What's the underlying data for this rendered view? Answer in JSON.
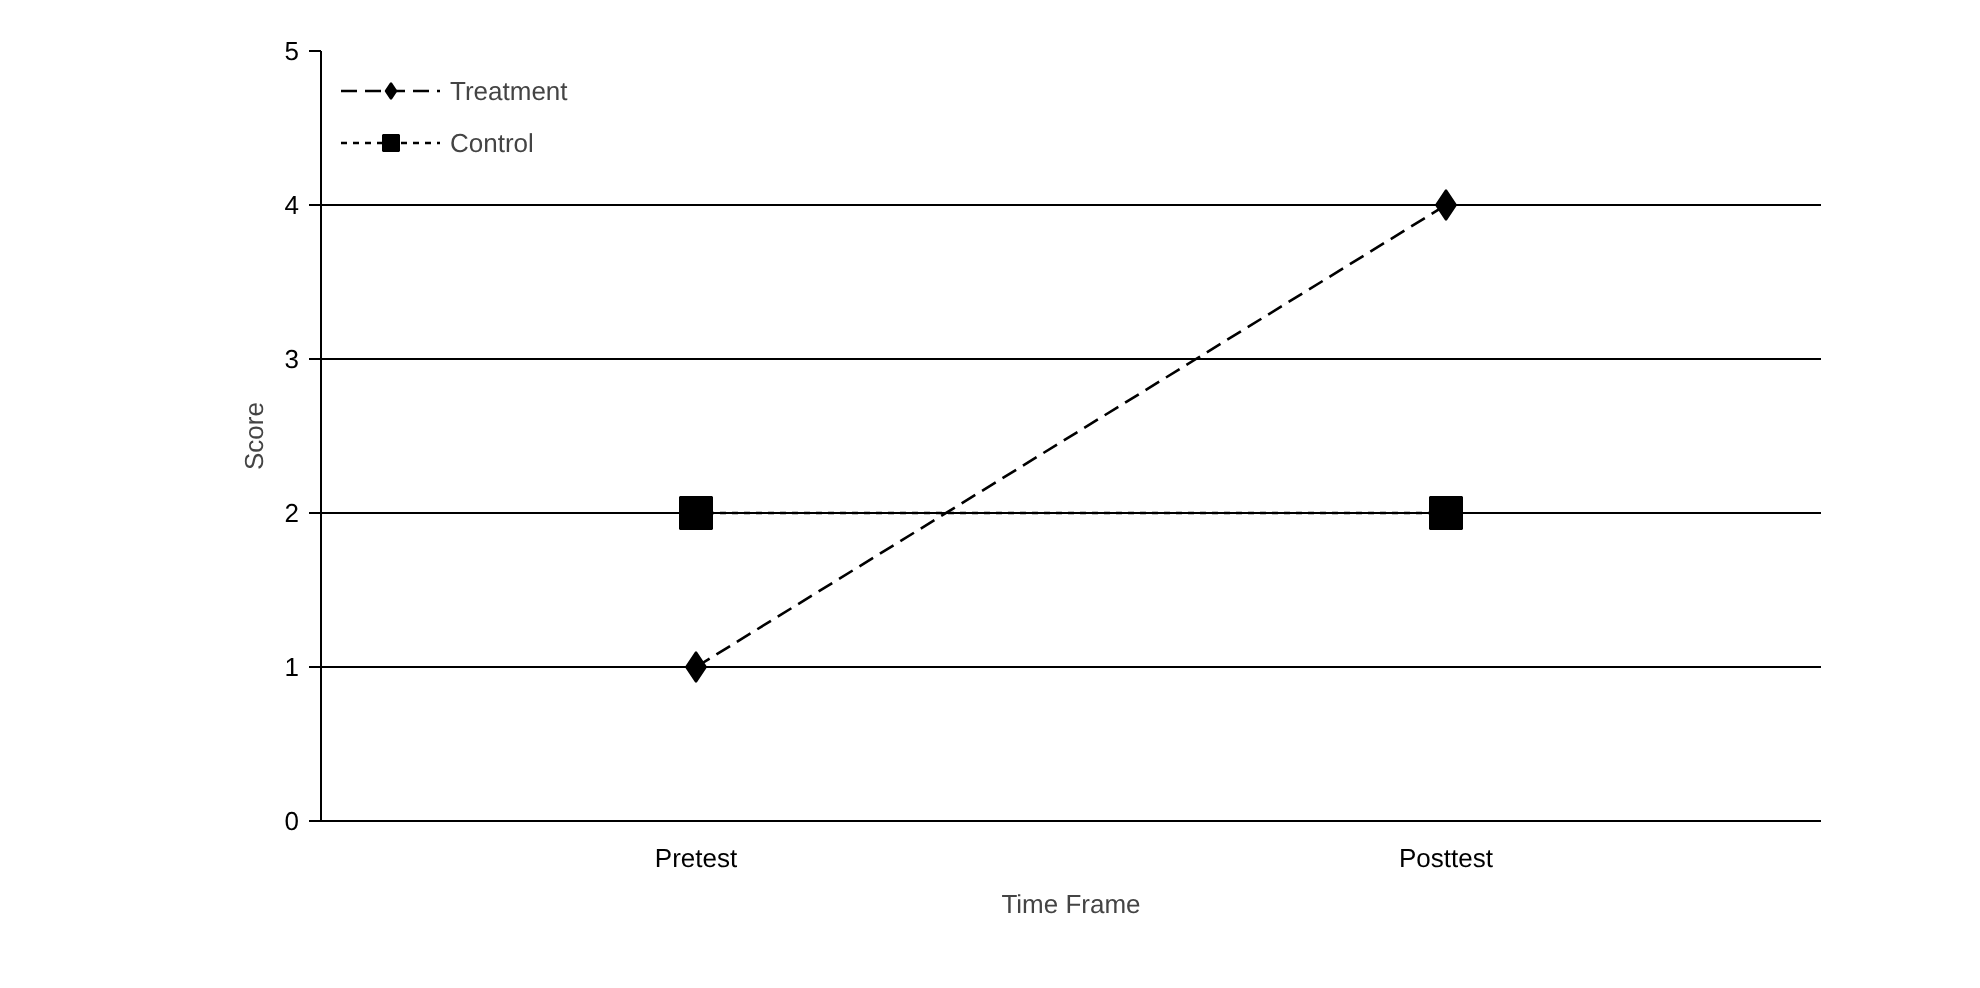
{
  "chart_data": {
    "type": "line",
    "xlabel": "Time Frame",
    "ylabel": "Score",
    "categories": [
      "Pretest",
      "Posttest"
    ],
    "series": [
      {
        "name": "Treatment",
        "color": "#000000",
        "values": [
          1,
          4
        ],
        "marker": "diamond",
        "line_style": "dashed"
      },
      {
        "name": "Control",
        "color": "#000000",
        "values": [
          2,
          2
        ],
        "marker": "square",
        "line_style": "dotted"
      }
    ],
    "ylim": [
      0,
      5
    ],
    "yticks": [
      0,
      1,
      2,
      3,
      4,
      5
    ],
    "grid": "y",
    "legend": "top left"
  }
}
